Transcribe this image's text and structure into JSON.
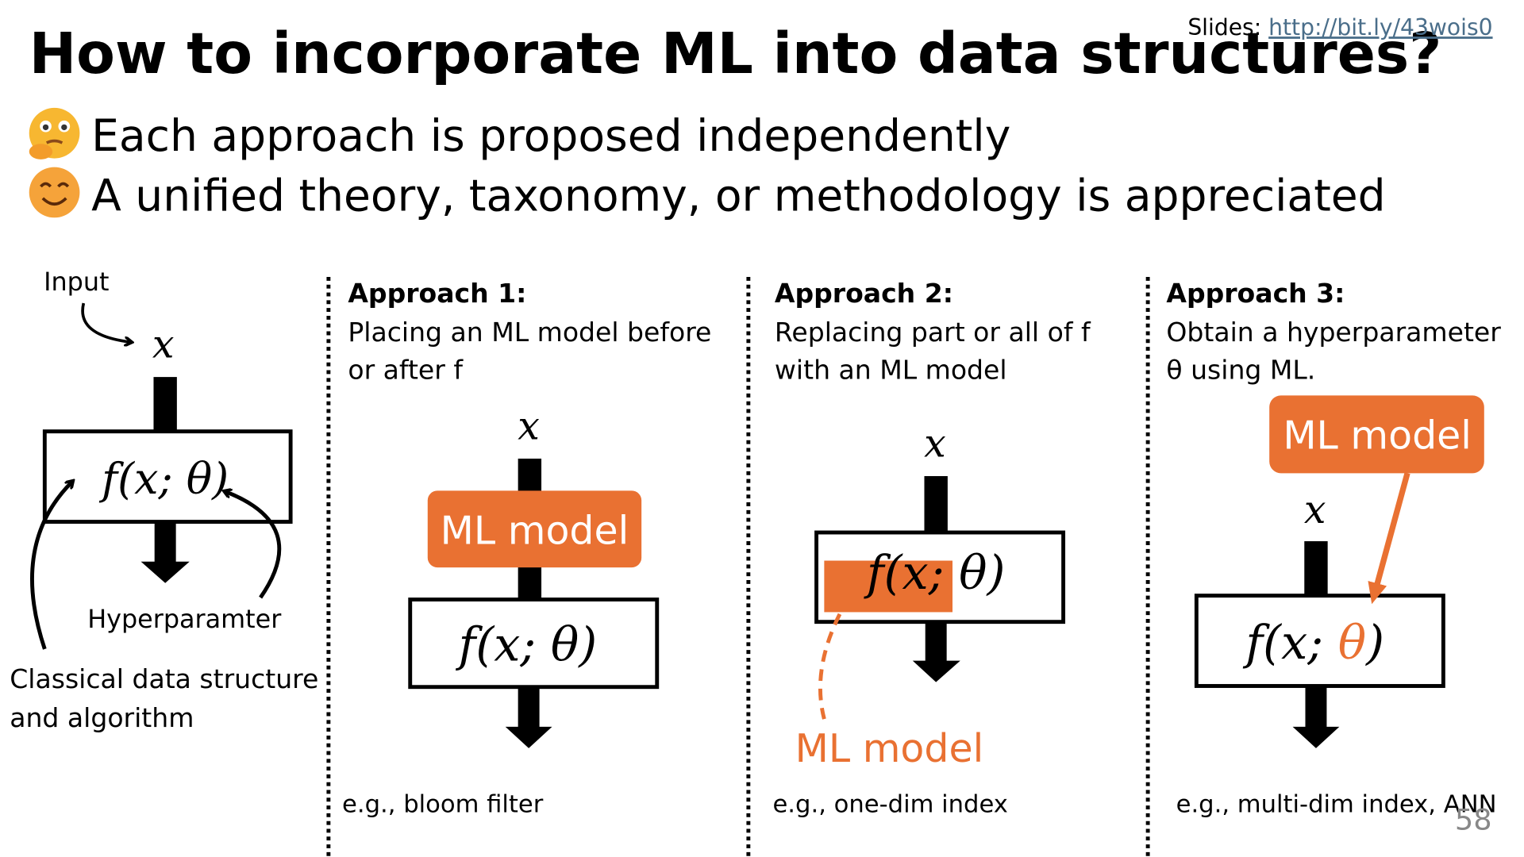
{
  "slide": {
    "title": "How to incorporate ML into data structures?",
    "slides_link": {
      "prefix": "Slides: ",
      "url": "http://bit.ly/43wois0"
    },
    "bullets": [
      "Each approach is proposed independently",
      "A unified theory, taxonomy, or methodology is appreciated"
    ],
    "page_number": "58",
    "classical": {
      "input_label": "Input",
      "x": "x",
      "function": "f(x; θ)",
      "hyperparameter_label": "Hyperparamter",
      "caption_lines": [
        "Classical data structure",
        "and algorithm"
      ]
    },
    "approaches": [
      {
        "heading": "Approach 1:",
        "description_lines": [
          "Placing an ML model before",
          "or after f"
        ],
        "x": "x",
        "model_label": "ML model",
        "function": "f(x; θ)",
        "example": "e.g., bloom filter"
      },
      {
        "heading": "Approach 2:",
        "description_lines": [
          "Replacing part or all of f",
          "with an ML model"
        ],
        "x": "x",
        "model_label": "ML model",
        "function": "f(x; θ)",
        "example": "e.g., one-dim index"
      },
      {
        "heading": "Approach 3:",
        "description_lines": [
          "Obtain a hyperparameter",
          "θ using ML."
        ],
        "x": "x",
        "model_label": "ML model",
        "function": [
          "f(x; ",
          "θ",
          ")"
        ],
        "example": "e.g., multi-dim index, ANN"
      }
    ]
  }
}
